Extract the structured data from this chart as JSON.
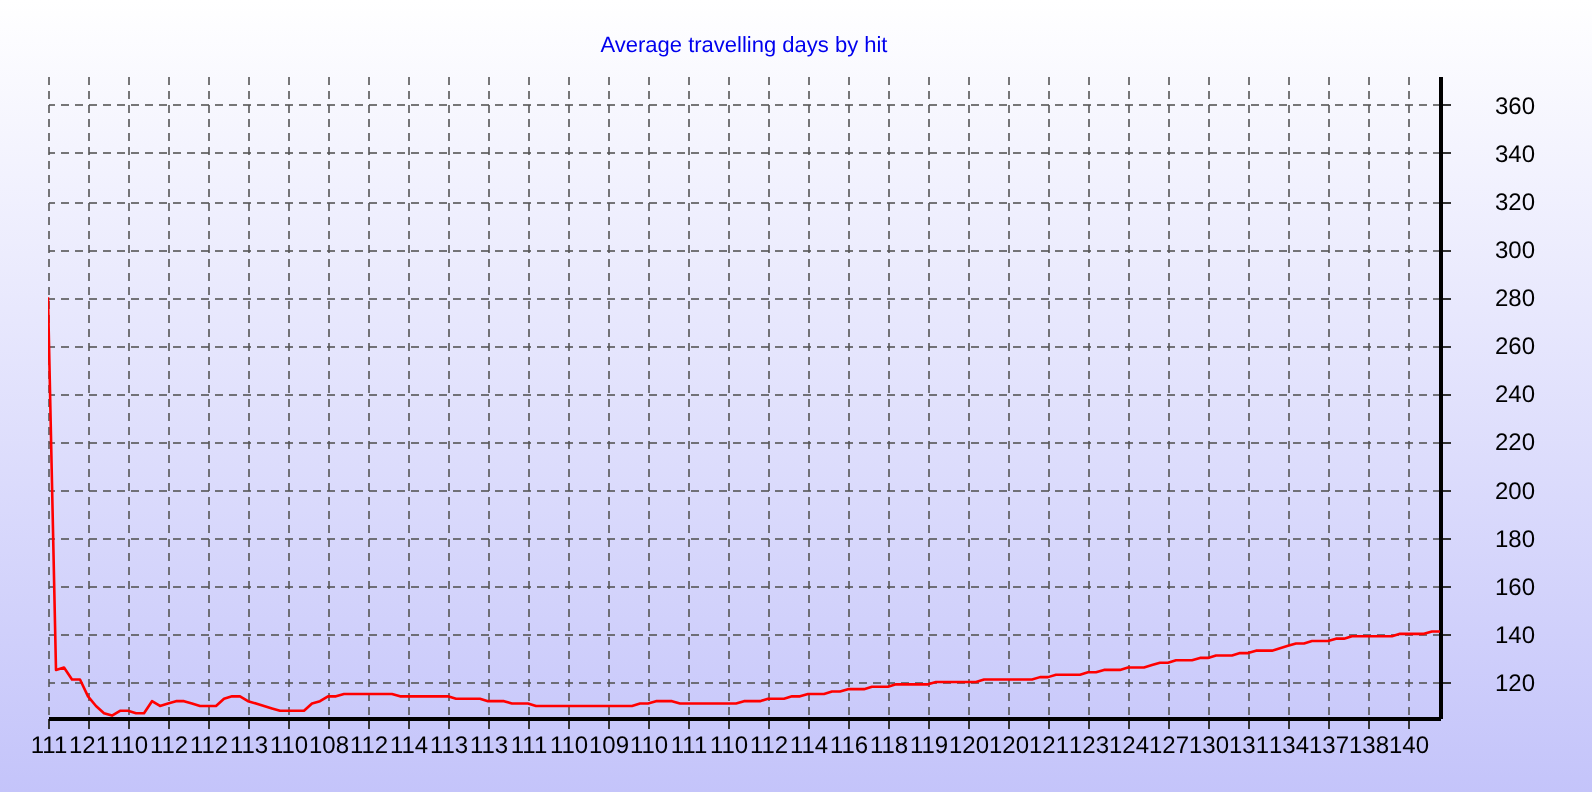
{
  "chart_data": {
    "type": "line",
    "title": "Average travelling days by hit",
    "categories": [
      "111",
      null,
      null,
      null,
      null,
      "121",
      null,
      null,
      null,
      null,
      "110",
      null,
      null,
      null,
      null,
      "112",
      null,
      null,
      null,
      null,
      "112",
      null,
      null,
      null,
      null,
      "113",
      null,
      null,
      null,
      null,
      "110",
      null,
      null,
      null,
      null,
      "108",
      null,
      null,
      null,
      null,
      "112",
      null,
      null,
      null,
      null,
      "114",
      null,
      null,
      null,
      null,
      "113",
      null,
      null,
      null,
      null,
      "113",
      null,
      null,
      null,
      null,
      "111",
      null,
      null,
      null,
      null,
      "110",
      null,
      null,
      null,
      null,
      "109",
      null,
      null,
      null,
      null,
      "110",
      null,
      null,
      null,
      null,
      "111",
      null,
      null,
      null,
      null,
      "110",
      null,
      null,
      null,
      null,
      "112",
      null,
      null,
      null,
      null,
      "114",
      null,
      null,
      null,
      null,
      "116",
      null,
      null,
      null,
      null,
      "118",
      null,
      null,
      null,
      null,
      "119",
      null,
      null,
      null,
      null,
      "120",
      null,
      null,
      null,
      null,
      "120",
      null,
      null,
      null,
      null,
      "121",
      null,
      null,
      null,
      null,
      "123",
      null,
      null,
      null,
      null,
      "124",
      null,
      null,
      null,
      null,
      "127",
      null,
      null,
      null,
      null,
      "130",
      null,
      null,
      null,
      null,
      "131",
      null,
      null,
      null,
      null,
      "134",
      null,
      null,
      null,
      null,
      "137",
      null,
      null,
      null,
      null,
      "138",
      null,
      null,
      null,
      null,
      "140",
      null,
      null,
      null,
      null
    ],
    "series": [
      {
        "color": "#ff0000",
        "values": [
          280,
          125,
          126,
          121,
          121,
          114,
          110,
          107,
          106,
          108,
          108,
          107,
          107,
          112,
          110,
          111,
          112,
          112,
          111,
          110,
          110,
          110,
          113,
          114,
          114,
          112,
          111,
          110,
          109,
          108,
          108,
          108,
          108,
          111,
          112,
          114,
          114,
          115,
          115,
          115,
          115,
          115,
          115,
          115,
          114,
          114,
          114,
          114,
          114,
          114,
          114,
          113,
          113,
          113,
          113,
          112,
          112,
          112,
          111,
          111,
          111,
          110,
          110,
          110,
          110,
          110,
          110,
          110,
          110,
          110,
          110,
          110,
          110,
          110,
          111,
          111,
          112,
          112,
          112,
          111,
          111,
          111,
          111,
          111,
          111,
          111,
          111,
          112,
          112,
          112,
          113,
          113,
          113,
          114,
          114,
          115,
          115,
          115,
          116,
          116,
          117,
          117,
          117,
          118,
          118,
          118,
          119,
          119,
          119,
          119,
          119,
          120,
          120,
          120,
          120,
          120,
          120,
          121,
          121,
          121,
          121,
          121,
          121,
          121,
          122,
          122,
          123,
          123,
          123,
          123,
          124,
          124,
          125,
          125,
          125,
          126,
          126,
          126,
          127,
          128,
          128,
          129,
          129,
          129,
          130,
          130,
          131,
          131,
          131,
          132,
          132,
          133,
          133,
          133,
          134,
          135,
          136,
          136,
          137,
          137,
          137,
          138,
          138,
          139,
          139,
          139,
          139,
          139,
          139,
          140,
          140,
          140,
          140,
          141,
          141
        ]
      }
    ],
    "ylim": [
      105,
      372
    ],
    "yticks": [
      120,
      140,
      160,
      180,
      200,
      220,
      240,
      260,
      280,
      300,
      320,
      340,
      360
    ],
    "grid": true
  }
}
